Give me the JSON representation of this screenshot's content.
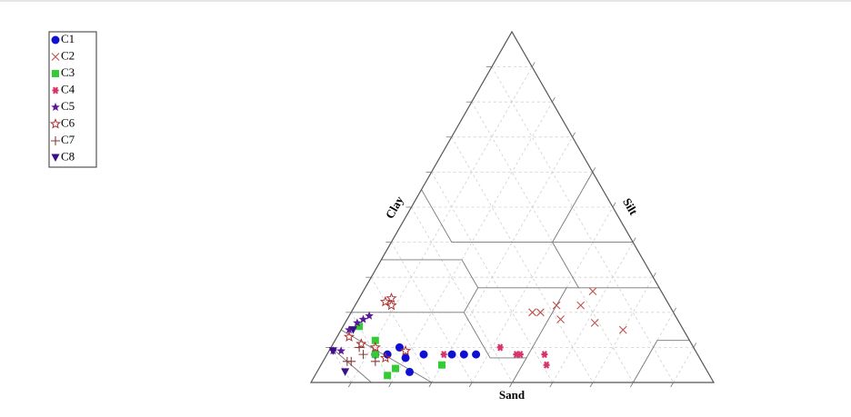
{
  "chart_data": {
    "type": "ternary",
    "axis_labels": {
      "bottom": "Sand",
      "left": "Clay",
      "right": "Silt"
    },
    "grid": true,
    "legend": "top-left",
    "series": [
      {
        "name": "C1",
        "color": "#1010d0",
        "marker": "circle",
        "sand": [
          73,
          77,
          73,
          74,
          68,
          61,
          58,
          55,
          80
        ],
        "clay": [
          10,
          8,
          7,
          3,
          8,
          8,
          8,
          8,
          8
        ],
        "silt": [
          17,
          15,
          20,
          23,
          24,
          31,
          34,
          37,
          12
        ]
      },
      {
        "name": "C2",
        "color": "#c0504d",
        "marker": "x",
        "sand": [
          17,
          28,
          22,
          35,
          33,
          29,
          21,
          15
        ],
        "clay": [
          26,
          22,
          22,
          20,
          20,
          18,
          17,
          15
        ],
        "silt": [
          57,
          50,
          56,
          45,
          47,
          53,
          62,
          70
        ]
      },
      {
        "name": "C3",
        "color": "#33cc33",
        "marker": "square",
        "sand": [
          78,
          77,
          80,
          65,
          80,
          80
        ],
        "clay": [
          12,
          4,
          2,
          5,
          16,
          8
        ],
        "silt": [
          10,
          19,
          18,
          30,
          4,
          12
        ]
      },
      {
        "name": "C4",
        "color": "#d6336c",
        "marker": "asterisk",
        "sand": [
          48,
          45,
          44,
          38,
          39,
          63
        ],
        "clay": [
          10,
          8,
          8,
          8,
          5,
          8
        ],
        "silt": [
          42,
          47,
          48,
          54,
          56,
          29
        ]
      },
      {
        "name": "C5",
        "color": "#5a1a9a",
        "marker": "star",
        "sand": [
          83,
          80,
          76,
          78,
          90,
          88
        ],
        "clay": [
          15,
          17,
          19,
          18,
          9,
          9
        ],
        "silt": [
          2,
          3,
          5,
          4,
          1,
          3
        ]
      },
      {
        "name": "C6",
        "color": "#b03030",
        "marker": "star-open",
        "sand": [
          70,
          68,
          69,
          82,
          79,
          72,
          84,
          78
        ],
        "clay": [
          23,
          24,
          22,
          11,
          10,
          9,
          13,
          7
        ],
        "silt": [
          7,
          8,
          9,
          7,
          11,
          19,
          3,
          15
        ]
      },
      {
        "name": "C7",
        "color": "#8b3a3a",
        "marker": "plus",
        "sand": [
          88,
          87,
          83,
          83,
          81
        ],
        "clay": [
          6,
          6,
          8,
          10,
          6
        ],
        "silt": [
          6,
          7,
          9,
          7,
          13
        ]
      },
      {
        "name": "C8",
        "color": "#3a1088",
        "marker": "triangle-down",
        "sand": [
          90,
          90,
          82
        ],
        "clay": [
          3,
          9,
          15
        ],
        "silt": [
          7,
          1,
          3
        ]
      }
    ]
  }
}
